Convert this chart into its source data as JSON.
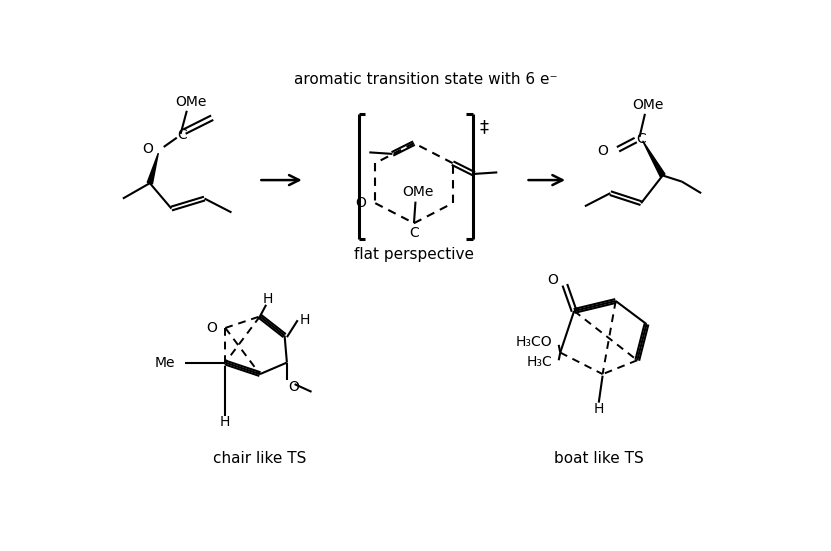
{
  "title": "aromatic transition state with 6 e⁻",
  "flat_label": "flat perspective",
  "chair_label": "chair like TS",
  "boat_label": "boat like TS",
  "dagger": "‡",
  "bg": "#ffffff",
  "figsize": [
    8.31,
    5.51
  ],
  "dpi": 100
}
